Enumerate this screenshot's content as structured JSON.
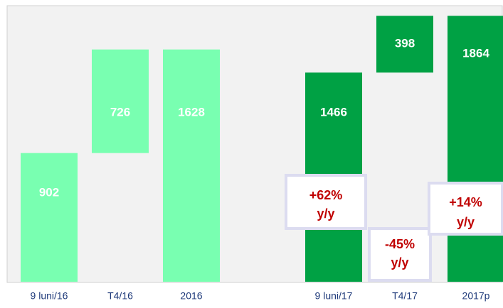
{
  "chart_data": {
    "type": "waterfall",
    "ylim": [
      0,
      1935
    ],
    "groups": [
      {
        "categories": [
          "9 luni/16",
          "T4/16",
          "2016"
        ],
        "values": [
          902,
          726,
          1628
        ],
        "color": "#79ffb1"
      },
      {
        "categories": [
          "9 luni/17",
          "T4/17",
          "2017p"
        ],
        "values": [
          1466,
          398,
          1864
        ],
        "color": "#00a144"
      }
    ],
    "annotations": [
      {
        "lines": [
          "+62%",
          "y/y"
        ]
      },
      {
        "lines": [
          "-45%",
          "y/y"
        ]
      },
      {
        "lines": [
          "+14%",
          "y/y"
        ]
      }
    ]
  }
}
